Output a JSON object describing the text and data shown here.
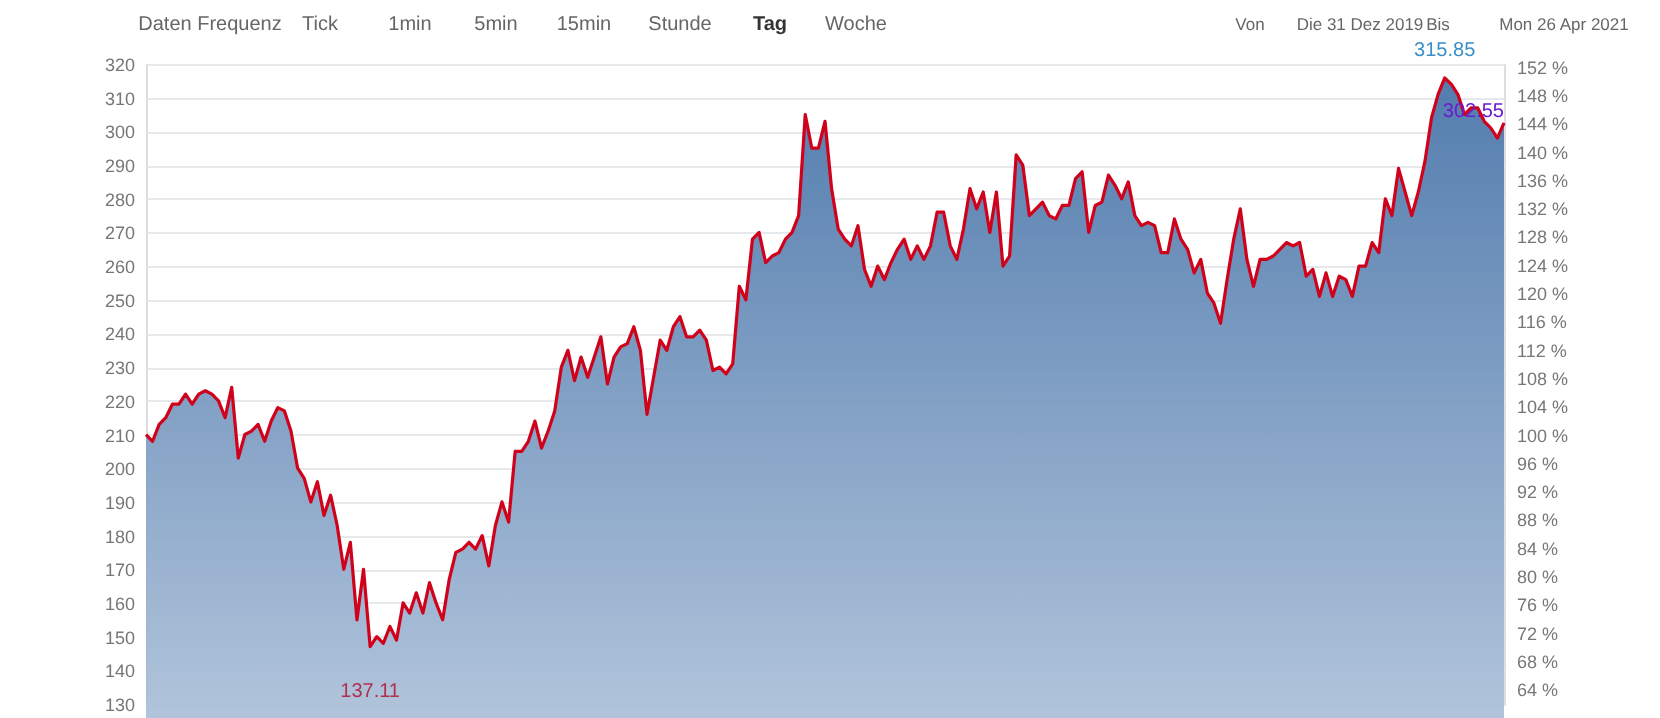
{
  "chart_data": {
    "type": "area",
    "categories": [
      null,
      null,
      null,
      null,
      null,
      null,
      null,
      null,
      null,
      null,
      null,
      null,
      null,
      null,
      null,
      null,
      null,
      null,
      null,
      null,
      null,
      null,
      null,
      null,
      null,
      null,
      null,
      null,
      null,
      null,
      null,
      null,
      null,
      null,
      null,
      null,
      null,
      null,
      null,
      null,
      null,
      null,
      null,
      null,
      null,
      null,
      null,
      null,
      null,
      null,
      null,
      null,
      null,
      null,
      null,
      null,
      null,
      null,
      null,
      null,
      null,
      null,
      null,
      null,
      null,
      null,
      null,
      null,
      null,
      null,
      null,
      null,
      null,
      null,
      null,
      null,
      null,
      null,
      null,
      null,
      null,
      null,
      null,
      null,
      null,
      null,
      null,
      null,
      null,
      null,
      null,
      null,
      null,
      null,
      null,
      null,
      null,
      null,
      null,
      null,
      null,
      null,
      null,
      null,
      null,
      null,
      null,
      null,
      null,
      null,
      null,
      null,
      null,
      null,
      null,
      null,
      null,
      null,
      null,
      null,
      null,
      null,
      null,
      null,
      null,
      null,
      null,
      null,
      null,
      null,
      null,
      null,
      null,
      null,
      null,
      null,
      null,
      null,
      null,
      null,
      null,
      null,
      null,
      null,
      null,
      null,
      null,
      null,
      null,
      null,
      null,
      null,
      null,
      null,
      null,
      null,
      null,
      null,
      null,
      null,
      null,
      null,
      null,
      null,
      null,
      null,
      null,
      null,
      null,
      null,
      null,
      null,
      null,
      null,
      null,
      null,
      null,
      null,
      null,
      null,
      null,
      null,
      null,
      null,
      null,
      null,
      null,
      null,
      null,
      null,
      null,
      null,
      null,
      null,
      null,
      null,
      null,
      null,
      null,
      null,
      null,
      null,
      null,
      null,
      null,
      null,
      null
    ],
    "series": [
      {
        "color": "#d0021b",
        "values": [
          210,
          208,
          213,
          215,
          219,
          219,
          222,
          219,
          222,
          223,
          222,
          220,
          215,
          224,
          203,
          210,
          211,
          213,
          208,
          214,
          218,
          217,
          211,
          200,
          197,
          190,
          196,
          186,
          192,
          183,
          170,
          178,
          155,
          170,
          147,
          150,
          148,
          153,
          149,
          160,
          157,
          163,
          157,
          166,
          160,
          155,
          167,
          175,
          176,
          178,
          176,
          180,
          171,
          183,
          190,
          184,
          205,
          205,
          208,
          214,
          206,
          211,
          217,
          230,
          235,
          226,
          233,
          227,
          233,
          239,
          225,
          233,
          236,
          237,
          242,
          235,
          216,
          227,
          238,
          235,
          242,
          245,
          239,
          239,
          241,
          238,
          229,
          230,
          228,
          231,
          254,
          250,
          268,
          270,
          261,
          263,
          264,
          268,
          270,
          275,
          305,
          295,
          295,
          303,
          283,
          271,
          268,
          266,
          272,
          259,
          254,
          260,
          256,
          261,
          265,
          268,
          262,
          266,
          262,
          266,
          276,
          276,
          266,
          262,
          271,
          283,
          277,
          282,
          270,
          282,
          260,
          263,
          293,
          290,
          275,
          277,
          279,
          275,
          274,
          278,
          278,
          286,
          288,
          270,
          278,
          279,
          287,
          284,
          280,
          285,
          275,
          272,
          273,
          272,
          264,
          264,
          274,
          268,
          265,
          258,
          262,
          252,
          249,
          243,
          256,
          268,
          277,
          262,
          254,
          262,
          262,
          263,
          265,
          267,
          266,
          267,
          257,
          259,
          251,
          258,
          251,
          257,
          256,
          251,
          260,
          260,
          267,
          264,
          280,
          275,
          289,
          282,
          275,
          282,
          291,
          304,
          311,
          315.85,
          314,
          311,
          305,
          307,
          307,
          303,
          301,
          298,
          302.55
        ]
      }
    ],
    "ylim": [
      130,
      320
    ],
    "yticks": [
      130,
      140,
      150,
      160,
      170,
      180,
      190,
      200,
      210,
      220,
      230,
      240,
      250,
      260,
      270,
      280,
      290,
      300,
      310,
      320
    ],
    "y2lim": [
      61.905,
      152.381
    ],
    "y2ticks": [
      {
        "value": 64,
        "label": "64 %"
      },
      {
        "value": 68,
        "label": "68 %"
      },
      {
        "value": 72,
        "label": "72 %"
      },
      {
        "value": 76,
        "label": "76 %"
      },
      {
        "value": 80,
        "label": "80 %"
      },
      {
        "value": 84,
        "label": "84 %"
      },
      {
        "value": 88,
        "label": "88 %"
      },
      {
        "value": 92,
        "label": "92 %"
      },
      {
        "value": 96,
        "label": "96 %"
      },
      {
        "value": 100,
        "label": "100 %"
      },
      {
        "value": 104,
        "label": "104 %"
      },
      {
        "value": 108,
        "label": "108 %"
      },
      {
        "value": 112,
        "label": "112 %"
      },
      {
        "value": 116,
        "label": "116 %"
      },
      {
        "value": 120,
        "label": "120 %"
      },
      {
        "value": 124,
        "label": "124 %"
      },
      {
        "value": 128,
        "label": "128 %"
      },
      {
        "value": 132,
        "label": "132 %"
      },
      {
        "value": 136,
        "label": "136 %"
      },
      {
        "value": 140,
        "label": "140 %"
      },
      {
        "value": 144,
        "label": "144 %"
      },
      {
        "value": 148,
        "label": "148 %"
      },
      {
        "value": 152,
        "label": "152 %"
      }
    ],
    "grid": "y",
    "annotations": [
      "Daten Frequenz",
      "Tick",
      "1min",
      "5min",
      "15min",
      "Stunde",
      "Tag",
      "Woche",
      "Von",
      "Die 31 Dez 2019",
      "Bis",
      "Mon 26 Apr 2021",
      "137.11",
      "315.85",
      {
        "text": "302.55",
        "y": 302.55
      }
    ]
  }
}
